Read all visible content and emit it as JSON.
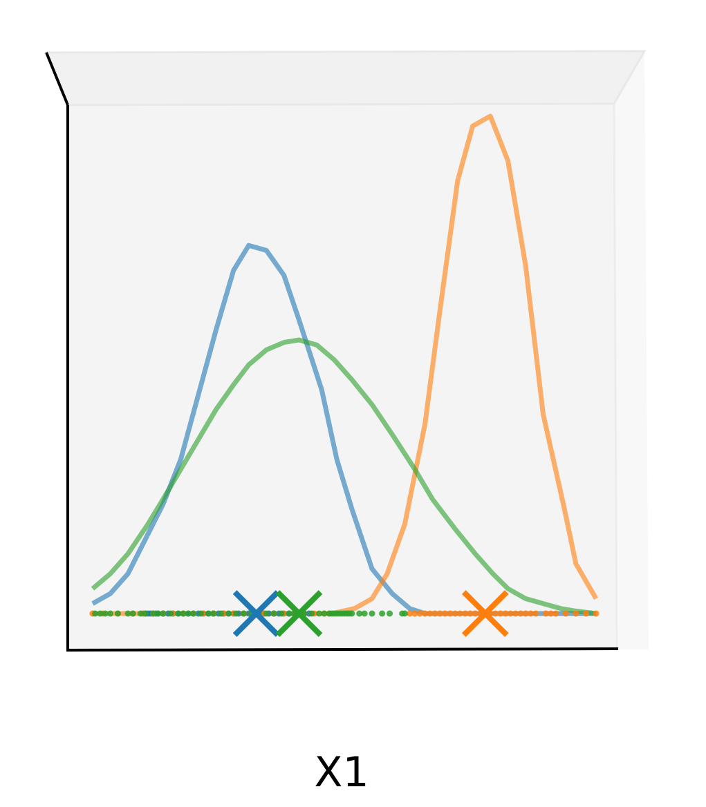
{
  "chart_data": {
    "type": "line",
    "projection": "3d",
    "xlabel": "X1",
    "ylabel": "",
    "xlim": [
      0,
      1
    ],
    "ylim": [
      0,
      1
    ],
    "grid": false,
    "legend": "none",
    "pane_color": "#f2f2f2",
    "series": [
      {
        "color": "#1f77b4",
        "density": [
          [
            0.0,
            0.02
          ],
          [
            0.035,
            0.04
          ],
          [
            0.07,
            0.08
          ],
          [
            0.14,
            0.22
          ],
          [
            0.175,
            0.31
          ],
          [
            0.21,
            0.44
          ],
          [
            0.245,
            0.57
          ],
          [
            0.28,
            0.69
          ],
          [
            0.31,
            0.74
          ],
          [
            0.345,
            0.73
          ],
          [
            0.38,
            0.68
          ],
          [
            0.41,
            0.59
          ],
          [
            0.455,
            0.45
          ],
          [
            0.485,
            0.31
          ],
          [
            0.515,
            0.21
          ],
          [
            0.555,
            0.09
          ],
          [
            0.595,
            0.04
          ],
          [
            0.63,
            0.01
          ],
          [
            0.66,
            0.0
          ],
          [
            1.0,
            0.0
          ]
        ],
        "centroid": 0.325,
        "samples": [
          0.1,
          0.105,
          0.11,
          0.115,
          0.12,
          0.125,
          0.13,
          0.14,
          0.15,
          0.16,
          0.17,
          0.18,
          0.19,
          0.2,
          0.21,
          0.22,
          0.23,
          0.24,
          0.25,
          0.26,
          0.27,
          0.28,
          0.29,
          0.3,
          0.31,
          0.32,
          0.33,
          0.34,
          0.35,
          0.36,
          0.37,
          0.38,
          0.39,
          0.4,
          0.41,
          0.42,
          0.43
        ]
      },
      {
        "color": "#ff7f0e",
        "density": [
          [
            0.0,
            0.0
          ],
          [
            0.475,
            0.0
          ],
          [
            0.52,
            0.01
          ],
          [
            0.555,
            0.03
          ],
          [
            0.585,
            0.08
          ],
          [
            0.62,
            0.18
          ],
          [
            0.66,
            0.38
          ],
          [
            0.69,
            0.61
          ],
          [
            0.725,
            0.87
          ],
          [
            0.755,
            0.98
          ],
          [
            0.79,
            1.0
          ],
          [
            0.825,
            0.91
          ],
          [
            0.86,
            0.7
          ],
          [
            0.895,
            0.4
          ],
          [
            0.935,
            0.22
          ],
          [
            0.96,
            0.1
          ],
          [
            1.0,
            0.03
          ]
        ],
        "centroid": 0.78,
        "samples": [
          0.0,
          0.02,
          0.05,
          0.08,
          0.1,
          0.12,
          0.14,
          0.16,
          0.18,
          0.2,
          0.22,
          0.24,
          0.26,
          0.28,
          0.3,
          0.32,
          0.34,
          0.36,
          0.38,
          0.4,
          0.42,
          0.44,
          0.46,
          0.47,
          0.63,
          0.64,
          0.65,
          0.66,
          0.67,
          0.68,
          0.69,
          0.7,
          0.71,
          0.72,
          0.73,
          0.74,
          0.75,
          0.76,
          0.77,
          0.78,
          0.79,
          0.8,
          0.81,
          0.82,
          0.83,
          0.84,
          0.85,
          0.86,
          0.87,
          0.88,
          0.9,
          0.91,
          0.92,
          0.94,
          0.96,
          0.98,
          1.0
        ]
      },
      {
        "color": "#2ca02c",
        "density": [
          [
            0.0,
            0.05
          ],
          [
            0.035,
            0.08
          ],
          [
            0.07,
            0.12
          ],
          [
            0.11,
            0.18
          ],
          [
            0.14,
            0.23
          ],
          [
            0.175,
            0.29
          ],
          [
            0.21,
            0.35
          ],
          [
            0.245,
            0.41
          ],
          [
            0.28,
            0.46
          ],
          [
            0.31,
            0.5
          ],
          [
            0.345,
            0.53
          ],
          [
            0.38,
            0.545
          ],
          [
            0.41,
            0.55
          ],
          [
            0.445,
            0.54
          ],
          [
            0.48,
            0.51
          ],
          [
            0.515,
            0.47
          ],
          [
            0.555,
            0.42
          ],
          [
            0.595,
            0.36
          ],
          [
            0.64,
            0.29
          ],
          [
            0.675,
            0.23
          ],
          [
            0.72,
            0.17
          ],
          [
            0.76,
            0.12
          ],
          [
            0.795,
            0.08
          ],
          [
            0.825,
            0.05
          ],
          [
            0.86,
            0.03
          ],
          [
            0.895,
            0.02
          ],
          [
            0.93,
            0.01
          ],
          [
            0.96,
            0.005
          ],
          [
            1.0,
            0.0
          ]
        ],
        "centroid": 0.41,
        "samples": [
          0.005,
          0.015,
          0.025,
          0.035,
          0.05,
          0.07,
          0.08,
          0.095,
          0.105,
          0.12,
          0.13,
          0.14,
          0.155,
          0.17,
          0.18,
          0.19,
          0.2,
          0.215,
          0.23,
          0.24,
          0.255,
          0.27,
          0.285,
          0.3,
          0.315,
          0.33,
          0.345,
          0.36,
          0.375,
          0.39,
          0.4,
          0.41,
          0.42,
          0.435,
          0.45,
          0.46,
          0.47,
          0.475,
          0.48,
          0.485,
          0.49,
          0.495,
          0.5,
          0.505,
          0.51,
          0.515,
          0.53,
          0.54,
          0.555,
          0.575,
          0.59,
          0.615,
          0.62
        ]
      }
    ]
  }
}
